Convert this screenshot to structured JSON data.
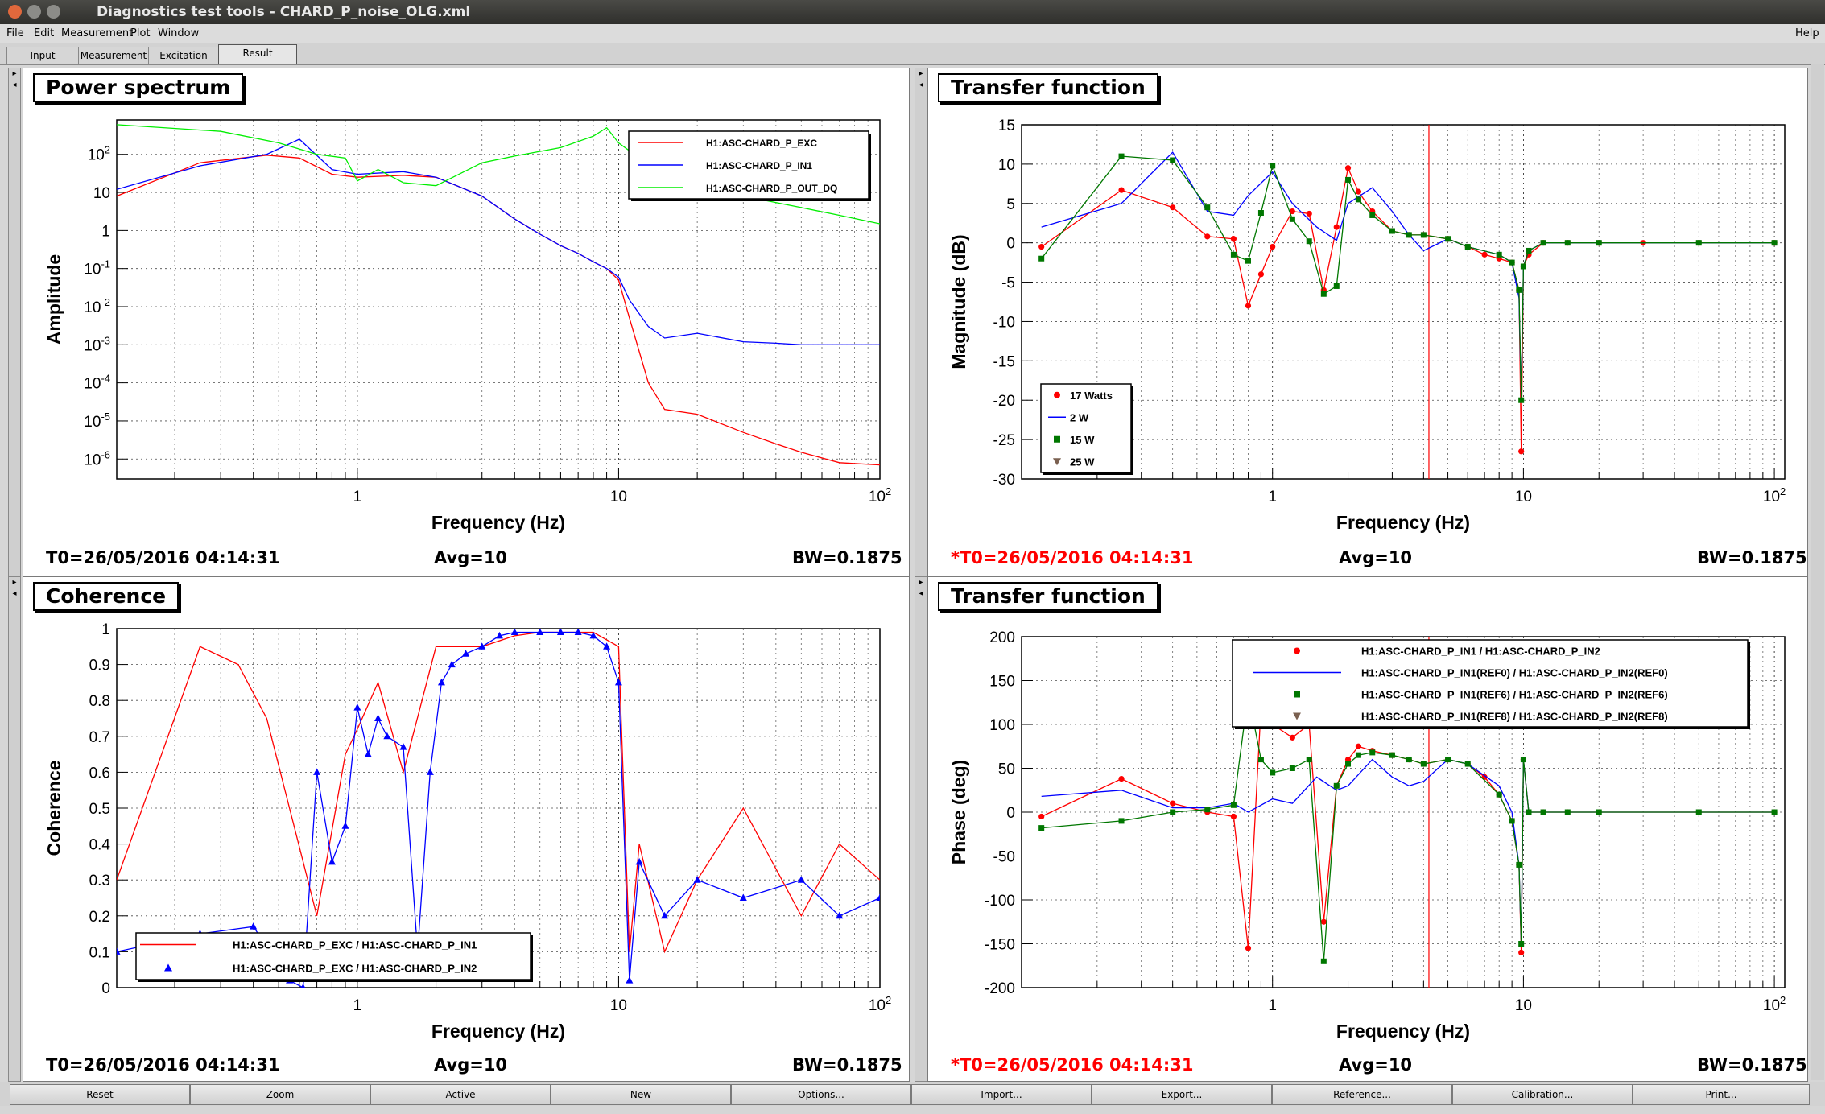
{
  "window": {
    "title": "Diagnostics test tools - CHARD_P_noise_OLG.xml"
  },
  "menu": {
    "file": "File",
    "edit": "Edit",
    "measurement": "Measurement",
    "plot": "Plot",
    "window": "Window",
    "help": "Help"
  },
  "tabs": {
    "input": "Input",
    "measurement": "Measurement",
    "excitation": "Excitation",
    "result": "Result"
  },
  "bottom_buttons": {
    "reset": "Reset",
    "zoom": "Zoom",
    "active": "Active",
    "new": "New",
    "options": "Options...",
    "import": "Import...",
    "export": "Export...",
    "reference": "Reference...",
    "calibration": "Calibration...",
    "print": "Print..."
  },
  "panels": {
    "power": {
      "title": "Power spectrum",
      "t0": "T0=26/05/2016 04:14:31",
      "avg": "Avg=10",
      "bw": "BW=0.1875",
      "xlabel": "Frequency (Hz)",
      "ylabel": "Amplitude"
    },
    "tfmag": {
      "title": "Transfer function",
      "t0": "*T0=26/05/2016 04:14:31",
      "avg": "Avg=10",
      "bw": "BW=0.1875",
      "xlabel": "Frequency (Hz)",
      "ylabel": "Magnitude (dB)"
    },
    "coh": {
      "title": "Coherence",
      "t0": "T0=26/05/2016 04:14:31",
      "avg": "Avg=10",
      "bw": "BW=0.1875",
      "xlabel": "Frequency (Hz)",
      "ylabel": "Coherence"
    },
    "tfphase": {
      "title": "Transfer function",
      "t0": "*T0=26/05/2016 04:14:31",
      "avg": "Avg=10",
      "bw": "BW=0.1875",
      "xlabel": "Frequency (Hz)",
      "ylabel": "Phase (deg)"
    }
  },
  "colors": {
    "red": "#ff0000",
    "blue": "#0000ff",
    "green": "#00ee00",
    "darkgreen": "#007700",
    "brown": "#7a6050"
  },
  "chart_data": [
    {
      "type": "line",
      "title": "Power spectrum",
      "xlabel": "Frequency (Hz)",
      "ylabel": "Amplitude",
      "xscale": "log",
      "yscale": "log",
      "xlim": [
        0.12,
        100
      ],
      "ylim": [
        3e-07,
        800
      ],
      "x_ticks": [
        "1",
        "10",
        "10^2"
      ],
      "y_ticks": [
        "10^-6",
        "10^-5",
        "10^-4",
        "10^-3",
        "10^-2",
        "10^-1",
        "1",
        "10",
        "10^2"
      ],
      "legend_position": "top-right",
      "series": [
        {
          "name": "H1:ASC-CHARD_P_EXC",
          "color": "#ff0000",
          "x": [
            0.12,
            0.25,
            0.45,
            0.6,
            0.8,
            1.0,
            1.5,
            2.0,
            3.0,
            4.0,
            5.0,
            6.0,
            7.0,
            8.0,
            9.0,
            10.0,
            11.0,
            13.0,
            15.0,
            20.0,
            30.0,
            40.0,
            50.0,
            70.0,
            100.0
          ],
          "y": [
            8,
            60,
            95,
            80,
            30,
            25,
            28,
            25,
            8,
            2,
            0.8,
            0.4,
            0.25,
            0.15,
            0.1,
            0.05,
            0.005,
            0.0001,
            2e-05,
            1.5e-05,
            5e-06,
            2.5e-06,
            1.5e-06,
            8e-07,
            7e-07
          ]
        },
        {
          "name": "H1:ASC-CHARD_P_IN1",
          "color": "#0000ff",
          "x": [
            0.12,
            0.25,
            0.45,
            0.6,
            0.8,
            1.0,
            1.5,
            2.0,
            3.0,
            4.0,
            5.0,
            6.0,
            7.0,
            8.0,
            9.0,
            10.0,
            11.0,
            13.0,
            15.0,
            20.0,
            30.0,
            40.0,
            50.0,
            70.0,
            100.0
          ],
          "y": [
            12,
            50,
            100,
            250,
            40,
            30,
            35,
            25,
            8,
            2,
            0.8,
            0.4,
            0.25,
            0.15,
            0.1,
            0.06,
            0.015,
            0.003,
            0.0015,
            0.002,
            0.0012,
            0.0011,
            0.001,
            0.001,
            0.001
          ]
        },
        {
          "name": "H1:ASC-CHARD_P_OUT_DQ",
          "color": "#00ee00",
          "x": [
            0.12,
            0.3,
            0.5,
            0.7,
            0.9,
            1.0,
            1.2,
            1.5,
            2.0,
            3.0,
            4.0,
            6.0,
            8.0,
            9.0,
            10.0,
            12.0,
            15.0,
            20.0,
            30.0,
            50.0,
            70.0,
            100.0
          ],
          "y": [
            600,
            400,
            200,
            100,
            80,
            20,
            40,
            18,
            15,
            60,
            90,
            150,
            300,
            500,
            200,
            80,
            35,
            20,
            8,
            4,
            2.5,
            1.5
          ]
        }
      ]
    },
    {
      "type": "line",
      "title": "Transfer function",
      "xlabel": "Frequency (Hz)",
      "ylabel": "Magnitude (dB)",
      "xscale": "log",
      "xlim": [
        0.1,
        110
      ],
      "ylim": [
        -30,
        15
      ],
      "x_ticks": [
        "1",
        "10",
        "10^2"
      ],
      "y_ticks": [
        "-30",
        "-25",
        "-20",
        "-15",
        "-10",
        "-5",
        "0",
        "5",
        "10",
        "15"
      ],
      "vertical_marker_x": 4.2,
      "legend_position": "bottom-left",
      "series": [
        {
          "name": "17 Watts",
          "color": "#ff0000",
          "marker": "circle",
          "x": [
            0.12,
            0.25,
            0.4,
            0.55,
            0.7,
            0.8,
            0.9,
            1.0,
            1.2,
            1.4,
            1.6,
            1.8,
            2.0,
            2.2,
            2.5,
            3.0,
            3.5,
            4.0,
            5.0,
            6.0,
            7.0,
            8.0,
            9.0,
            9.6,
            9.8,
            10.0,
            10.5,
            12.0,
            15.0,
            20.0,
            30.0,
            50.0,
            100.0
          ],
          "y": [
            -0.5,
            6.7,
            4.5,
            0.8,
            0.5,
            -8,
            -4,
            -0.5,
            4,
            3.7,
            -6,
            2,
            9.5,
            6.5,
            4,
            1.5,
            1,
            1,
            0.5,
            -0.5,
            -1.5,
            -2,
            -2.5,
            -6,
            -26.5,
            -3,
            -1.5,
            0,
            0,
            0,
            0,
            0,
            0
          ]
        },
        {
          "name": "2 W",
          "color": "#0000ff",
          "marker": "none",
          "x": [
            0.12,
            0.25,
            0.4,
            0.55,
            0.7,
            0.8,
            1.0,
            1.2,
            1.5,
            1.8,
            2.0,
            2.5,
            3.0,
            3.5,
            4.0,
            5.0,
            6.0,
            8.0,
            9.0,
            9.6,
            9.8,
            10.0,
            10.5,
            12.0,
            15.0,
            20.0,
            50.0,
            100.0
          ],
          "y": [
            2,
            5,
            11.5,
            4,
            3.5,
            6,
            9,
            5,
            2,
            0.3,
            5,
            7,
            4,
            1,
            -1,
            0.5,
            -0.5,
            -1.5,
            -2.5,
            -7,
            -20,
            -3,
            -1,
            0,
            0,
            0,
            0,
            0
          ]
        },
        {
          "name": "15 W",
          "color": "#007700",
          "marker": "square",
          "x": [
            0.12,
            0.25,
            0.4,
            0.55,
            0.7,
            0.8,
            0.9,
            1.0,
            1.2,
            1.4,
            1.6,
            1.8,
            2.0,
            2.2,
            2.5,
            3.0,
            3.5,
            4.0,
            5.0,
            6.0,
            8.0,
            9.0,
            9.6,
            9.8,
            10.0,
            10.5,
            12.0,
            15.0,
            20.0,
            50.0,
            100.0
          ],
          "y": [
            -2,
            11,
            10.5,
            4.5,
            -1.5,
            -2.3,
            3.8,
            9.8,
            3,
            0.2,
            -6.5,
            -5.5,
            8,
            5.5,
            3.5,
            1.5,
            1,
            1,
            0.5,
            -0.5,
            -1.5,
            -2.5,
            -6,
            -20,
            -3,
            -1,
            0,
            0,
            0,
            0,
            0
          ]
        },
        {
          "name": "25 W",
          "color": "#7a6050",
          "marker": "triangle-down",
          "x": [],
          "y": []
        }
      ]
    },
    {
      "type": "scatter",
      "title": "Coherence",
      "xlabel": "Frequency (Hz)",
      "ylabel": "Coherence",
      "xscale": "log",
      "xlim": [
        0.12,
        100
      ],
      "ylim": [
        0,
        1
      ],
      "x_ticks": [
        "1",
        "10",
        "10^2"
      ],
      "y_ticks": [
        "0",
        "0.1",
        "0.2",
        "0.3",
        "0.4",
        "0.5",
        "0.6",
        "0.7",
        "0.8",
        "0.9",
        "1"
      ],
      "legend_position": "bottom-left",
      "series": [
        {
          "name": "H1:ASC-CHARD_P_EXC / H1:ASC-CHARD_P_IN1",
          "color": "#ff0000",
          "marker": "none",
          "x": [
            0.12,
            0.25,
            0.35,
            0.45,
            0.55,
            0.7,
            0.9,
            1.0,
            1.2,
            1.5,
            2.0,
            3.0,
            4.0,
            5.0,
            6.0,
            8.0,
            10.0,
            11.0,
            12.0,
            15.0,
            20.0,
            30.0,
            50.0,
            70.0,
            100.0
          ],
          "y": [
            0.3,
            0.95,
            0.9,
            0.75,
            0.5,
            0.2,
            0.65,
            0.72,
            0.85,
            0.6,
            0.95,
            0.95,
            0.98,
            0.99,
            0.99,
            0.99,
            0.95,
            0.1,
            0.4,
            0.1,
            0.3,
            0.5,
            0.2,
            0.4,
            0.3
          ]
        },
        {
          "name": "H1:ASC-CHARD_P_EXC / H1:ASC-CHARD_P_IN2",
          "color": "#0000ff",
          "marker": "triangle",
          "x": [
            0.12,
            0.25,
            0.4,
            0.55,
            0.62,
            0.7,
            0.8,
            0.9,
            1.0,
            1.1,
            1.2,
            1.3,
            1.5,
            1.7,
            1.9,
            2.1,
            2.3,
            2.6,
            3.0,
            3.5,
            4.0,
            5.0,
            6.0,
            7.0,
            8.0,
            9.0,
            10.0,
            11.0,
            12.0,
            15.0,
            20.0,
            30.0,
            50.0,
            70.0,
            100.0
          ],
          "y": [
            0.1,
            0.15,
            0.17,
            0.02,
            0.0,
            0.6,
            0.35,
            0.45,
            0.78,
            0.65,
            0.75,
            0.7,
            0.67,
            0.1,
            0.6,
            0.85,
            0.9,
            0.93,
            0.95,
            0.98,
            0.99,
            0.99,
            0.99,
            0.99,
            0.98,
            0.95,
            0.85,
            0.02,
            0.35,
            0.2,
            0.3,
            0.25,
            0.3,
            0.2,
            0.25
          ]
        }
      ]
    },
    {
      "type": "line",
      "title": "Transfer function",
      "xlabel": "Frequency (Hz)",
      "ylabel": "Phase (deg)",
      "xscale": "log",
      "xlim": [
        0.1,
        110
      ],
      "ylim": [
        -200,
        200
      ],
      "x_ticks": [
        "1",
        "10",
        "10^2"
      ],
      "y_ticks": [
        "-200",
        "-150",
        "-100",
        "-50",
        "0",
        "50",
        "100",
        "150",
        "200"
      ],
      "vertical_marker_x": 4.2,
      "legend_position": "top-right",
      "series": [
        {
          "name": "H1:ASC-CHARD_P_IN1 / H1:ASC-CHARD_P_IN2",
          "color": "#ff0000",
          "marker": "circle",
          "x": [
            0.12,
            0.25,
            0.4,
            0.55,
            0.7,
            0.8,
            0.9,
            1.0,
            1.2,
            1.4,
            1.6,
            1.8,
            2.0,
            2.2,
            2.5,
            3.0,
            3.5,
            4.0,
            5.0,
            6.0,
            7.0,
            8.0,
            9.0,
            9.6,
            9.8,
            10.0,
            10.5,
            12.0,
            15.0,
            20.0,
            50.0,
            100.0
          ],
          "y": [
            -5,
            38,
            10,
            0,
            -5,
            -155,
            120,
            100,
            85,
            100,
            -125,
            30,
            60,
            75,
            70,
            65,
            60,
            55,
            60,
            55,
            40,
            20,
            -10,
            -60,
            -160,
            60,
            0,
            0,
            0,
            0,
            0,
            0
          ]
        },
        {
          "name": "H1:ASC-CHARD_P_IN1(REF0) / H1:ASC-CHARD_P_IN2(REF0)",
          "color": "#0000ff",
          "marker": "none",
          "x": [
            0.12,
            0.25,
            0.4,
            0.55,
            0.7,
            0.8,
            1.0,
            1.2,
            1.5,
            1.8,
            2.0,
            2.5,
            3.0,
            3.5,
            4.0,
            5.0,
            6.0,
            8.0,
            9.0,
            9.6,
            9.8,
            10.0,
            10.5,
            12.0,
            15.0,
            20.0,
            50.0,
            100.0
          ],
          "y": [
            18,
            25,
            5,
            5,
            10,
            0,
            15,
            10,
            40,
            25,
            30,
            60,
            40,
            30,
            35,
            60,
            55,
            30,
            0,
            -60,
            -150,
            60,
            0,
            0,
            0,
            0,
            0,
            0
          ]
        },
        {
          "name": "H1:ASC-CHARD_P_IN1(REF6) / H1:ASC-CHARD_P_IN2(REF6)",
          "color": "#007700",
          "marker": "square",
          "x": [
            0.12,
            0.25,
            0.4,
            0.55,
            0.7,
            0.8,
            0.9,
            1.0,
            1.2,
            1.4,
            1.6,
            1.8,
            2.0,
            2.2,
            2.5,
            3.0,
            3.5,
            4.0,
            5.0,
            6.0,
            8.0,
            9.0,
            9.6,
            9.8,
            10.0,
            10.5,
            12.0,
            15.0,
            20.0,
            50.0,
            100.0
          ],
          "y": [
            -18,
            -10,
            0,
            3,
            8,
            135,
            60,
            45,
            50,
            60,
            -170,
            30,
            55,
            65,
            68,
            65,
            60,
            55,
            60,
            55,
            20,
            -10,
            -60,
            -150,
            60,
            0,
            0,
            0,
            0,
            0,
            0
          ]
        },
        {
          "name": "H1:ASC-CHARD_P_IN1(REF8) / H1:ASC-CHARD_P_IN2(REF8)",
          "color": "#7a6050",
          "marker": "triangle-down",
          "x": [],
          "y": []
        }
      ]
    }
  ]
}
